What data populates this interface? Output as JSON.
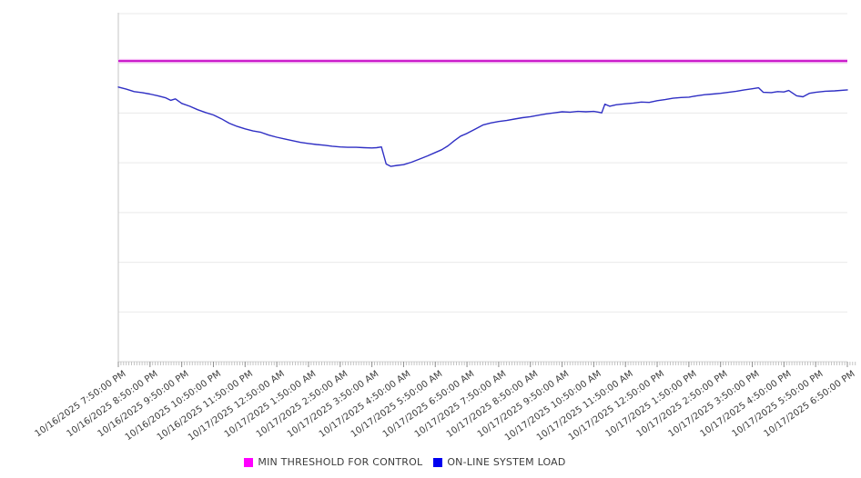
{
  "page": {
    "background": "#ffffff"
  },
  "legend": {
    "items": [
      {
        "label": "MIN THRESHOLD FOR CONTROL",
        "color": "#ff00ff"
      },
      {
        "label": "ON-LINE SYSTEM LOAD",
        "color": "#0000f0"
      }
    ]
  },
  "chart_data": {
    "type": "line",
    "title": "",
    "xlabel": "",
    "ylabel": "",
    "grid": "horizontal",
    "legend_position": "bottom-center",
    "y_axis": {
      "tick_labels_visible": false,
      "ylim": [
        0,
        100
      ],
      "gridline_count": 8,
      "note": "No y-axis tick labels are rendered; series values are estimated as percent of plot height (0 = bottom gridline, 100 = top gridline)."
    },
    "x_axis": {
      "hours_span": 23,
      "minor_tick_minutes": 5,
      "tick_labels": [
        "10/16/2025 7:50:00 PM",
        "10/16/2025 8:50:00 PM",
        "10/16/2025 9:50:00 PM",
        "10/16/2025 10:50:00 PM",
        "10/16/2025 11:50:00 PM",
        "10/17/2025 12:50:00 AM",
        "10/17/2025 1:50:00 AM",
        "10/17/2025 2:50:00 AM",
        "10/17/2025 3:50:00 AM",
        "10/17/2025 4:50:00 AM",
        "10/17/2025 5:50:00 AM",
        "10/17/2025 6:50:00 AM",
        "10/17/2025 7:50:00 AM",
        "10/17/2025 8:50:00 AM",
        "10/17/2025 9:50:00 AM",
        "10/17/2025 10:50:00 AM",
        "10/17/2025 11:50:00 AM",
        "10/17/2025 12:50:00 PM",
        "10/17/2025 1:50:00 PM",
        "10/17/2025 2:50:00 PM",
        "10/17/2025 3:50:00 PM",
        "10/17/2025 4:50:00 PM",
        "10/17/2025 5:50:00 PM",
        "10/17/2025 6:50:00 PM"
      ]
    },
    "series": [
      {
        "name": "MIN THRESHOLD FOR CONTROL",
        "style": "constant-threshold",
        "color": "#c713c7",
        "glow_color": "#f6bdf6",
        "value": 86.4
      },
      {
        "name": "ON-LINE SYSTEM LOAD",
        "style": "line",
        "color": "#2f2fc4",
        "points_format": "[hours_after_first_tick, relative_value_0_100]",
        "points": [
          [
            0,
            78.9
          ],
          [
            0.25,
            78.3
          ],
          [
            0.5,
            77.6
          ],
          [
            0.75,
            77.3
          ],
          [
            1,
            76.9
          ],
          [
            1.25,
            76.4
          ],
          [
            1.5,
            75.8
          ],
          [
            1.65,
            75.1
          ],
          [
            1.8,
            75.5
          ],
          [
            2,
            74.2
          ],
          [
            2.25,
            73.4
          ],
          [
            2.5,
            72.4
          ],
          [
            2.75,
            71.6
          ],
          [
            3,
            70.9
          ],
          [
            3.25,
            69.8
          ],
          [
            3.5,
            68.5
          ],
          [
            3.75,
            67.6
          ],
          [
            4,
            66.9
          ],
          [
            4.25,
            66.3
          ],
          [
            4.5,
            65.9
          ],
          [
            4.75,
            65.1
          ],
          [
            5,
            64.5
          ],
          [
            5.25,
            64.0
          ],
          [
            5.5,
            63.5
          ],
          [
            5.75,
            63.0
          ],
          [
            6,
            62.7
          ],
          [
            6.25,
            62.4
          ],
          [
            6.5,
            62.2
          ],
          [
            6.75,
            61.9
          ],
          [
            7,
            61.7
          ],
          [
            7.25,
            61.6
          ],
          [
            7.5,
            61.6
          ],
          [
            7.75,
            61.5
          ],
          [
            8,
            61.4
          ],
          [
            8.15,
            61.5
          ],
          [
            8.3,
            61.7
          ],
          [
            8.45,
            56.8
          ],
          [
            8.6,
            56.1
          ],
          [
            8.8,
            56.4
          ],
          [
            9,
            56.6
          ],
          [
            9.25,
            57.3
          ],
          [
            9.5,
            58.2
          ],
          [
            9.75,
            59.1
          ],
          [
            10,
            60.1
          ],
          [
            10.2,
            60.9
          ],
          [
            10.4,
            62.0
          ],
          [
            10.6,
            63.5
          ],
          [
            10.8,
            64.8
          ],
          [
            11,
            65.6
          ],
          [
            11.25,
            66.8
          ],
          [
            11.5,
            68.0
          ],
          [
            11.75,
            68.6
          ],
          [
            12,
            69.0
          ],
          [
            12.25,
            69.3
          ],
          [
            12.5,
            69.7
          ],
          [
            12.75,
            70.1
          ],
          [
            13,
            70.4
          ],
          [
            13.25,
            70.8
          ],
          [
            13.5,
            71.2
          ],
          [
            13.75,
            71.5
          ],
          [
            14,
            71.8
          ],
          [
            14.25,
            71.7
          ],
          [
            14.5,
            71.9
          ],
          [
            14.75,
            71.8
          ],
          [
            15,
            71.9
          ],
          [
            15.15,
            71.7
          ],
          [
            15.25,
            71.5
          ],
          [
            15.35,
            74.0
          ],
          [
            15.5,
            73.4
          ],
          [
            15.7,
            73.8
          ],
          [
            16,
            74.1
          ],
          [
            16.25,
            74.3
          ],
          [
            16.5,
            74.6
          ],
          [
            16.75,
            74.5
          ],
          [
            17,
            75.0
          ],
          [
            17.25,
            75.3
          ],
          [
            17.5,
            75.7
          ],
          [
            17.75,
            75.9
          ],
          [
            18,
            76.0
          ],
          [
            18.25,
            76.4
          ],
          [
            18.5,
            76.7
          ],
          [
            18.75,
            76.9
          ],
          [
            19,
            77.1
          ],
          [
            19.25,
            77.4
          ],
          [
            19.5,
            77.7
          ],
          [
            19.75,
            78.1
          ],
          [
            20,
            78.4
          ],
          [
            20.2,
            78.7
          ],
          [
            20.35,
            77.4
          ],
          [
            20.6,
            77.3
          ],
          [
            20.8,
            77.6
          ],
          [
            21,
            77.5
          ],
          [
            21.15,
            77.9
          ],
          [
            21.4,
            76.4
          ],
          [
            21.6,
            76.1
          ],
          [
            21.8,
            77.1
          ],
          [
            22,
            77.4
          ],
          [
            22.3,
            77.7
          ],
          [
            22.6,
            77.8
          ],
          [
            23,
            78.1
          ]
        ]
      }
    ]
  }
}
